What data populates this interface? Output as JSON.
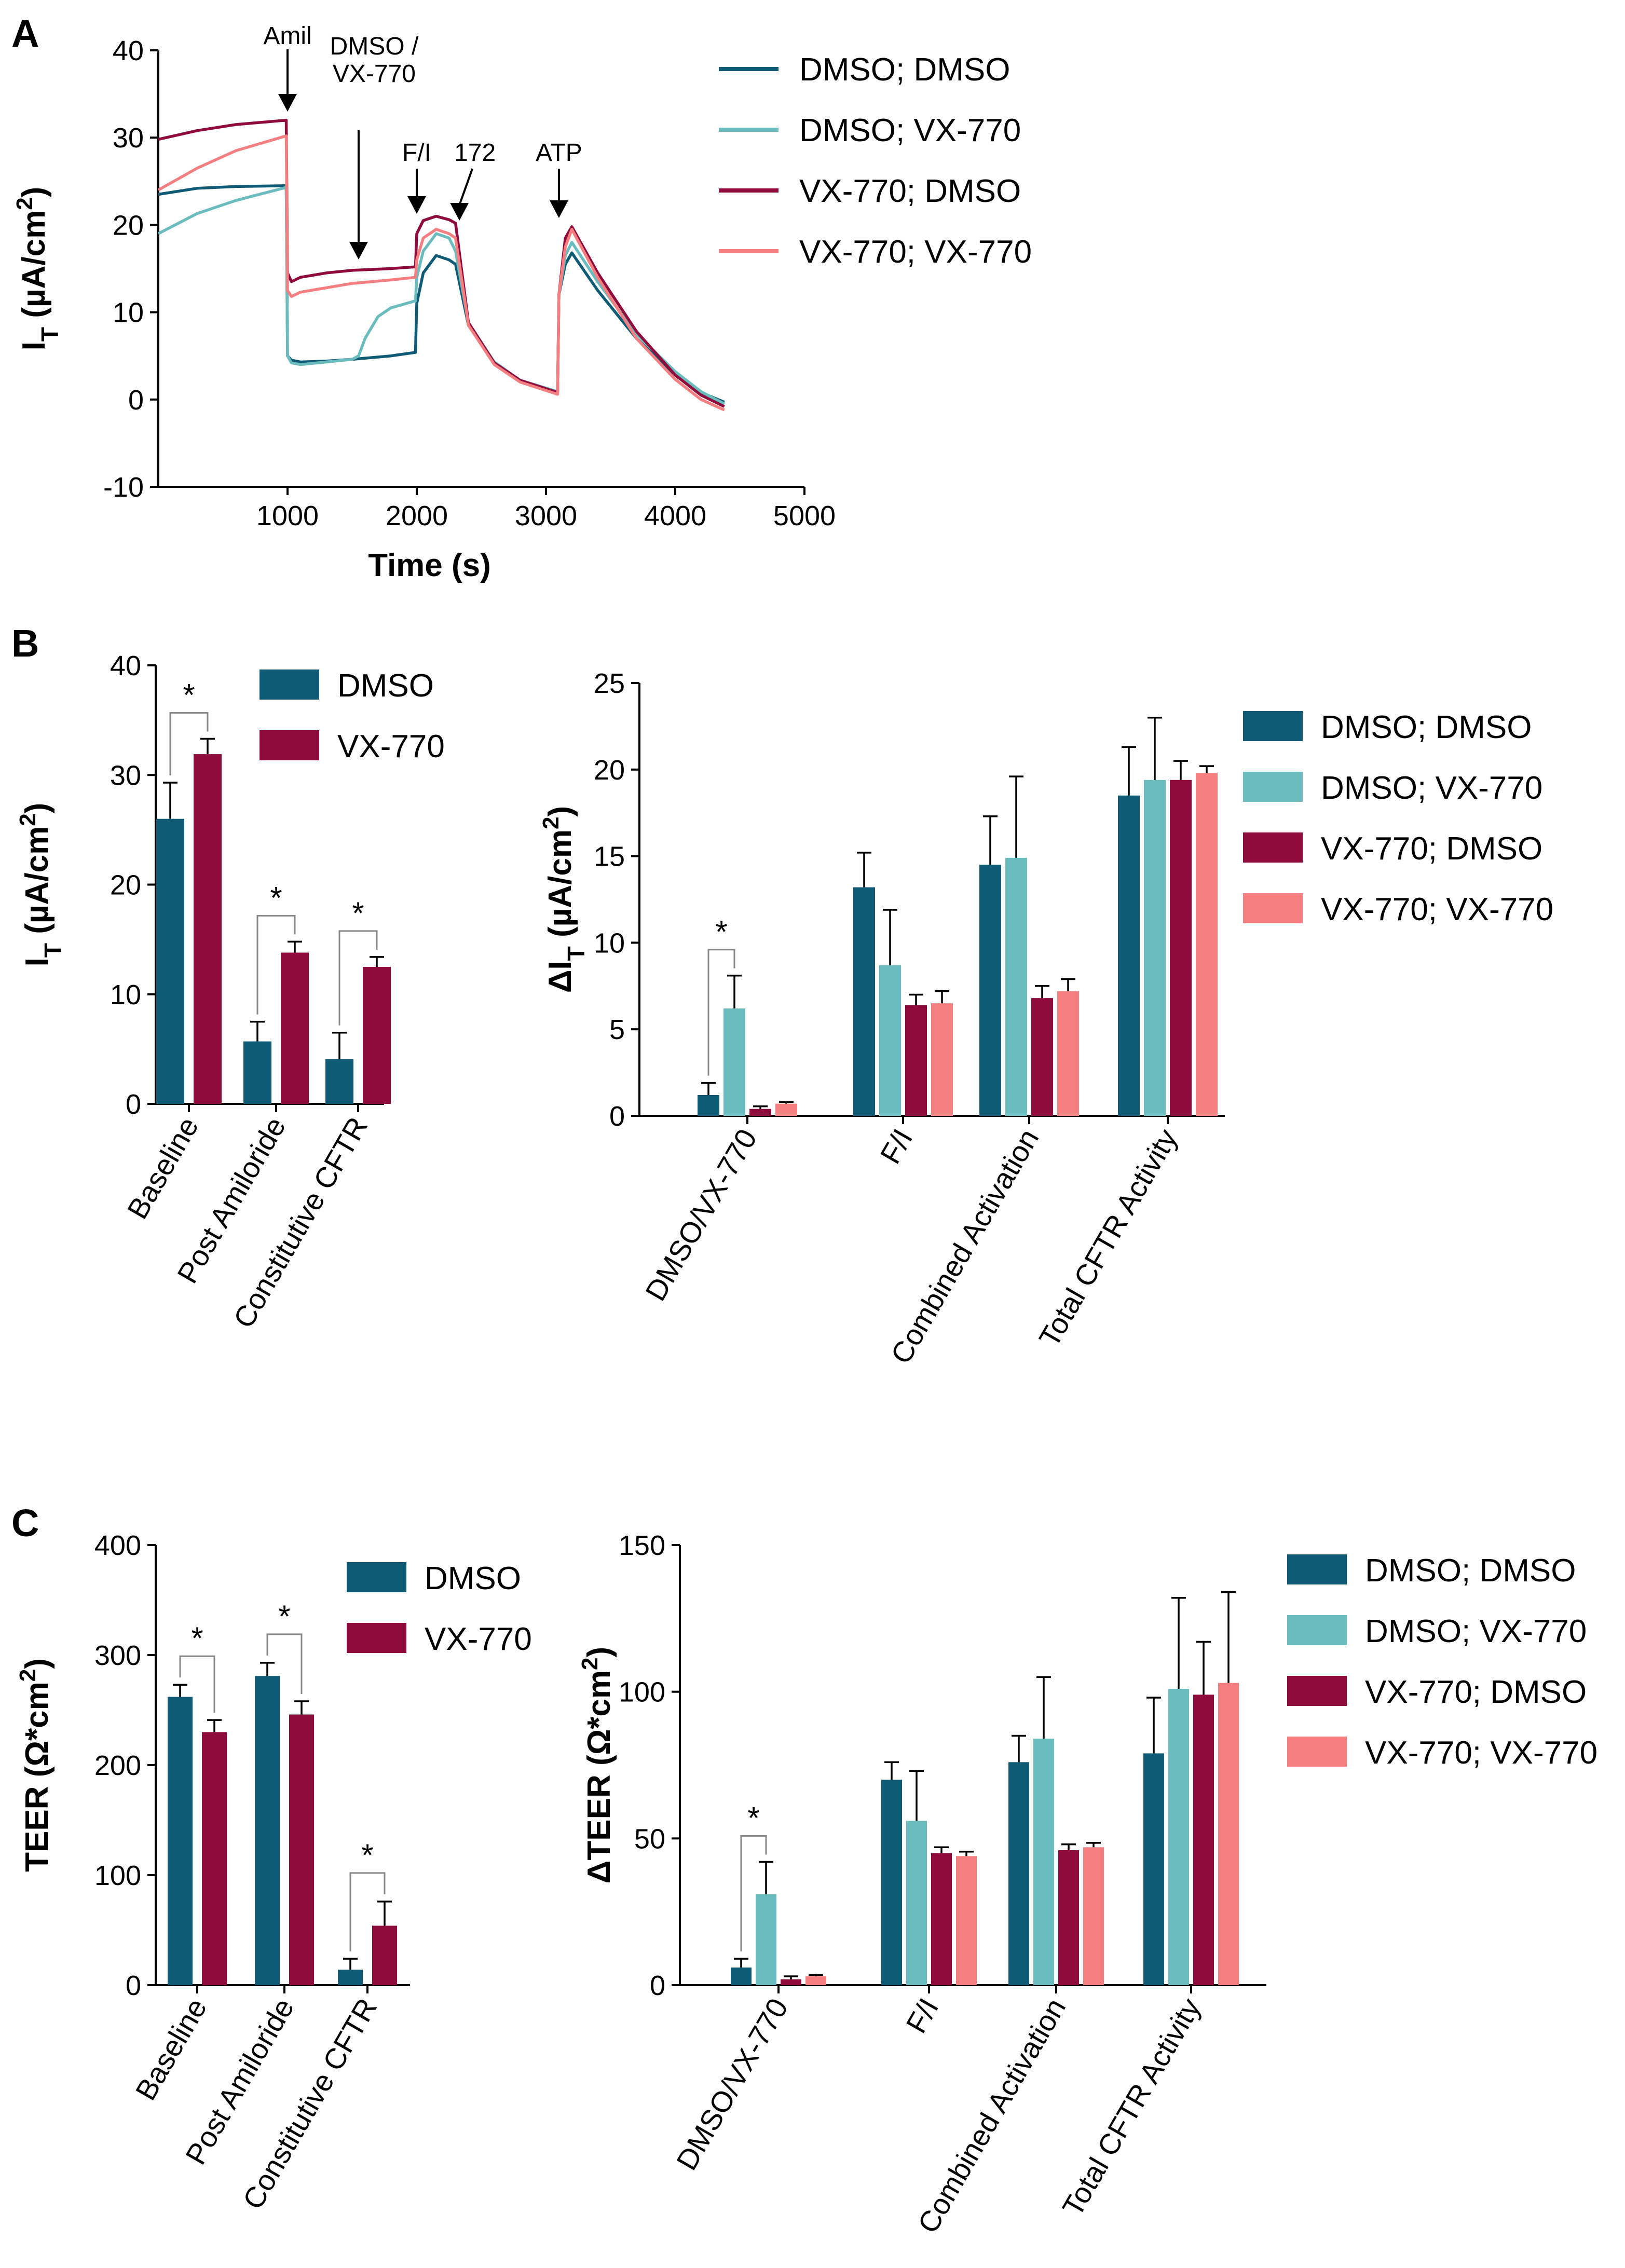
{
  "colors": {
    "dmso_dmso": "#0f5a74",
    "dmso_vx": "#6bbcbe",
    "vx_dmso": "#8e0b3c",
    "vx_vx": "#f57f80",
    "dmso": "#0f5a74",
    "vx": "#8e0b3c"
  },
  "chart_data": [
    {
      "id": "A",
      "panel_label": "A",
      "type": "line",
      "xlabel": "Time (s)",
      "ylabel": "I_T (µA/cm²)",
      "xlim": [
        0,
        5000
      ],
      "ylim": [
        -10,
        40
      ],
      "xticks": [
        1000,
        2000,
        3000,
        4000,
        5000
      ],
      "yticks": [
        -10,
        0,
        10,
        20,
        30,
        40
      ],
      "annotations": [
        {
          "text": "Amil",
          "x": 1000
        },
        {
          "text": "DMSO /",
          "text2": "VX-770",
          "x": 1550
        },
        {
          "text": "F/I",
          "x": 2000
        },
        {
          "text": "172",
          "x": 2330
        },
        {
          "text": "ATP",
          "x": 3100
        }
      ],
      "series": [
        {
          "name": "DMSO; DMSO",
          "color_key": "dmso_dmso",
          "x": [
            0,
            300,
            600,
            990,
            1000,
            1030,
            1100,
            1300,
            1500,
            1800,
            1990,
            2000,
            2050,
            2150,
            2250,
            2300,
            2400,
            2600,
            2800,
            3090,
            3100,
            3150,
            3200,
            3400,
            3700,
            4000,
            4200,
            4380
          ],
          "y": [
            23.5,
            24.2,
            24.4,
            24.5,
            5.0,
            4.5,
            4.3,
            4.4,
            4.6,
            5.0,
            5.4,
            11,
            14.5,
            16.5,
            16.0,
            15.5,
            8.5,
            4.2,
            2.2,
            0.9,
            12,
            15.5,
            16.8,
            12.5,
            7,
            2.8,
            0.8,
            -0.3
          ]
        },
        {
          "name": "DMSO; VX-770",
          "color_key": "dmso_vx",
          "x": [
            0,
            300,
            600,
            990,
            1000,
            1030,
            1100,
            1300,
            1500,
            1550,
            1600,
            1700,
            1800,
            1990,
            2000,
            2050,
            2150,
            2250,
            2300,
            2400,
            2600,
            2800,
            3090,
            3100,
            3150,
            3200,
            3400,
            3700,
            4000,
            4200,
            4380
          ],
          "y": [
            19,
            21.3,
            22.8,
            24.3,
            5.0,
            4.2,
            4.0,
            4.3,
            4.6,
            5.0,
            7.0,
            9.5,
            10.5,
            11.3,
            14,
            17,
            19,
            18.5,
            17,
            8.8,
            4.3,
            2.2,
            0.9,
            12,
            16.5,
            18,
            13.5,
            7.5,
            3.2,
            0.9,
            -0.5
          ]
        },
        {
          "name": "VX-770; DMSO",
          "color_key": "vx_dmso",
          "x": [
            0,
            300,
            600,
            990,
            1000,
            1030,
            1100,
            1300,
            1500,
            1800,
            1990,
            2000,
            2050,
            2150,
            2250,
            2300,
            2400,
            2600,
            2800,
            3090,
            3100,
            3150,
            3200,
            3400,
            3700,
            4000,
            4200,
            4380
          ],
          "y": [
            29.8,
            30.8,
            31.5,
            32.0,
            14.5,
            13.5,
            14.0,
            14.5,
            14.8,
            15.0,
            15.2,
            19,
            20.5,
            21,
            20.6,
            20.2,
            8.8,
            4.2,
            2.2,
            0.8,
            12,
            18.5,
            19.8,
            14.5,
            7.8,
            2.8,
            0.5,
            -0.8
          ]
        },
        {
          "name": "VX-770; VX-770",
          "color_key": "vx_vx",
          "x": [
            0,
            300,
            600,
            990,
            1000,
            1030,
            1100,
            1300,
            1500,
            1800,
            1990,
            2000,
            2050,
            2150,
            2250,
            2300,
            2400,
            2600,
            2800,
            3090,
            3100,
            3150,
            3200,
            3400,
            3700,
            4000,
            4200,
            4380
          ],
          "y": [
            24,
            26.5,
            28.5,
            30.2,
            12.5,
            11.8,
            12.3,
            12.8,
            13.3,
            13.7,
            14.0,
            16,
            18.5,
            19.5,
            19.0,
            18.5,
            8.5,
            4.0,
            2.0,
            0.6,
            12,
            17.5,
            19.5,
            14,
            7,
            2.3,
            0.0,
            -1.2
          ]
        }
      ]
    },
    {
      "id": "B_left",
      "panel_label": "B",
      "type": "bar",
      "ylabel": "I_T (µA/cm²)",
      "ylim": [
        0,
        40
      ],
      "yticks": [
        0,
        10,
        20,
        30,
        40
      ],
      "categories": [
        "Baseline",
        "Post Amiloride",
        "Constitutive CFTR"
      ],
      "series": [
        {
          "name": "DMSO",
          "color_key": "dmso",
          "values": [
            26,
            5.7,
            4.1
          ],
          "errors": [
            3.3,
            1.8,
            2.4
          ]
        },
        {
          "name": "VX-770",
          "color_key": "vx",
          "values": [
            31.9,
            13.8,
            12.5
          ],
          "errors": [
            1.4,
            1.0,
            0.9
          ]
        }
      ],
      "significance": [
        {
          "category": 0,
          "a": 0,
          "b": 1,
          "label": "*"
        },
        {
          "category": 1,
          "a": 0,
          "b": 1,
          "label": "*"
        },
        {
          "category": 2,
          "a": 0,
          "b": 1,
          "label": "*"
        }
      ]
    },
    {
      "id": "B_right",
      "type": "bar",
      "ylabel": "ΔI_T (µA/cm²)",
      "ylim": [
        0,
        25
      ],
      "yticks": [
        0,
        5,
        10,
        15,
        20,
        25
      ],
      "categories": [
        "DMSO/VX-770",
        "F/I",
        "Combined Activation",
        "Total CFTR Activity"
      ],
      "series": [
        {
          "name": "DMSO; DMSO",
          "color_key": "dmso_dmso",
          "values": [
            1.2,
            13.2,
            14.5,
            18.5
          ],
          "errors": [
            0.7,
            2.0,
            2.8,
            2.8
          ]
        },
        {
          "name": "DMSO; VX-770",
          "color_key": "dmso_vx",
          "values": [
            6.2,
            8.7,
            14.9,
            19.4
          ],
          "errors": [
            1.9,
            3.2,
            4.7,
            3.6
          ]
        },
        {
          "name": "VX-770; DMSO",
          "color_key": "vx_dmso",
          "values": [
            0.4,
            6.4,
            6.8,
            19.4
          ],
          "errors": [
            0.15,
            0.6,
            0.7,
            1.1
          ]
        },
        {
          "name": "VX-770; VX-770",
          "color_key": "vx_vx",
          "values": [
            0.7,
            6.5,
            7.2,
            19.8
          ],
          "errors": [
            0.1,
            0.7,
            0.7,
            0.4
          ]
        }
      ],
      "significance": [
        {
          "category": 0,
          "a": 0,
          "b": 1,
          "label": "*"
        }
      ]
    },
    {
      "id": "C_left",
      "panel_label": "C",
      "type": "bar",
      "ylabel": "TEER (Ω*cm²)",
      "ylim": [
        0,
        400
      ],
      "yticks": [
        0,
        100,
        200,
        300,
        400
      ],
      "categories": [
        "Baseline",
        "Post Amiloride",
        "Constitutive CFTR"
      ],
      "series": [
        {
          "name": "DMSO",
          "color_key": "dmso",
          "values": [
            262,
            281,
            14
          ],
          "errors": [
            11,
            12,
            10
          ]
        },
        {
          "name": "VX-770",
          "color_key": "vx",
          "values": [
            230,
            246,
            54
          ],
          "errors": [
            11,
            12,
            22
          ]
        }
      ],
      "significance": [
        {
          "category": 0,
          "a": 0,
          "b": 1,
          "label": "*"
        },
        {
          "category": 1,
          "a": 0,
          "b": 1,
          "label": "*"
        },
        {
          "category": 2,
          "a": 0,
          "b": 1,
          "label": "*"
        }
      ]
    },
    {
      "id": "C_right",
      "type": "bar",
      "ylabel": "ΔTEER (Ω*cm²)",
      "ylim": [
        0,
        150
      ],
      "yticks": [
        0,
        50,
        100,
        150
      ],
      "categories": [
        "DMSO/VX-770",
        "F/I",
        "Combined Activation",
        "Total CFTR Activity"
      ],
      "series": [
        {
          "name": "DMSO; DMSO",
          "color_key": "dmso_dmso",
          "values": [
            6,
            70,
            76,
            79
          ],
          "errors": [
            3,
            6,
            9,
            19
          ]
        },
        {
          "name": "DMSO; VX-770",
          "color_key": "dmso_vx",
          "values": [
            31,
            56,
            84,
            101
          ],
          "errors": [
            11,
            17,
            21,
            31
          ]
        },
        {
          "name": "VX-770; DMSO",
          "color_key": "vx_dmso",
          "values": [
            2,
            45,
            46,
            99
          ],
          "errors": [
            1,
            2,
            2,
            18
          ]
        },
        {
          "name": "VX-770; VX-770",
          "color_key": "vx_vx",
          "values": [
            3,
            44,
            47,
            103
          ],
          "errors": [
            0.5,
            1.5,
            1.5,
            31
          ]
        }
      ],
      "significance": [
        {
          "category": 0,
          "a": 0,
          "b": 1,
          "label": "*"
        }
      ]
    }
  ]
}
